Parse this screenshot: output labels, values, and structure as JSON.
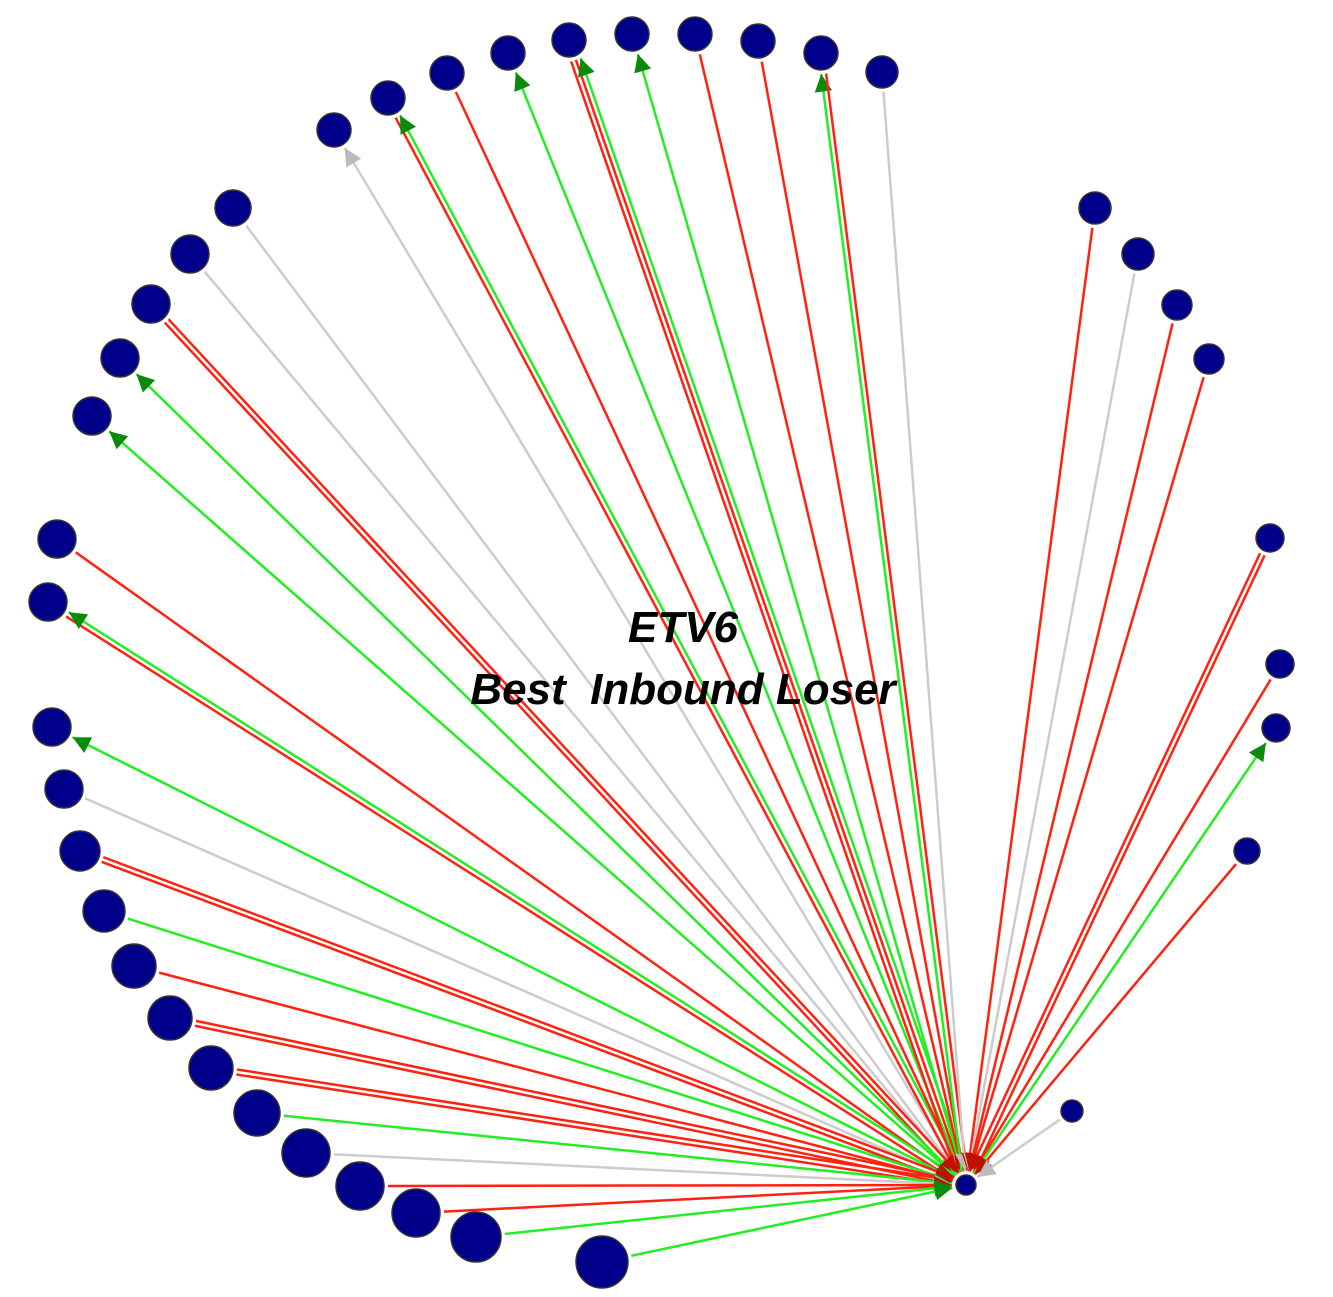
{
  "title": {
    "line1": "ETV6",
    "line2": "Best  Inbound Loser"
  }
}
